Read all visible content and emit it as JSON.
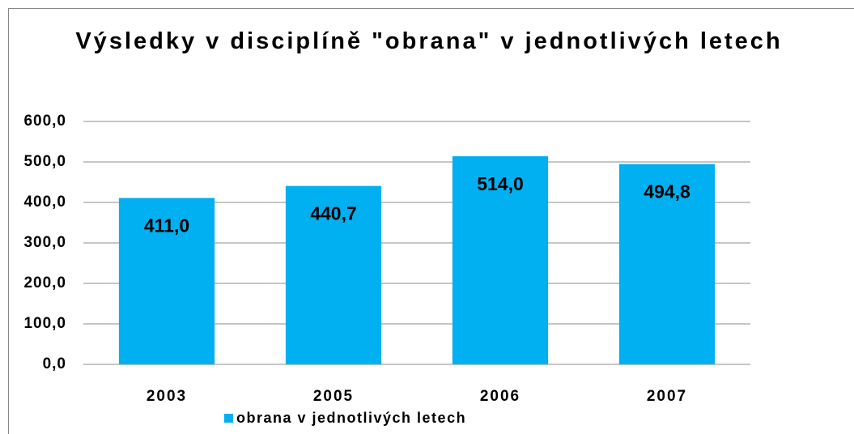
{
  "chart_data": {
    "type": "bar",
    "title": "Výsledky v disciplíně \"obrana\" v jednotlivých letech",
    "categories": [
      "2003",
      "2005",
      "2006",
      "2007"
    ],
    "series": [
      {
        "name": "obrana v jednotlivých letech",
        "color": "#00b0f0",
        "values": [
          411.0,
          440.7,
          514.0,
          494.8
        ],
        "value_labels": [
          "411,0",
          "440,7",
          "514,0",
          "494,8"
        ]
      }
    ],
    "ylim": [
      0,
      600
    ],
    "yticks": [
      {
        "value": 0,
        "label": "0,0"
      },
      {
        "value": 100,
        "label": "100,0"
      },
      {
        "value": 200,
        "label": "200,0"
      },
      {
        "value": 300,
        "label": "300,0"
      },
      {
        "value": 400,
        "label": "400,0"
      },
      {
        "value": 500,
        "label": "500,0"
      },
      {
        "value": 600,
        "label": "600,0"
      }
    ],
    "grid": true,
    "legend": "bottom"
  }
}
